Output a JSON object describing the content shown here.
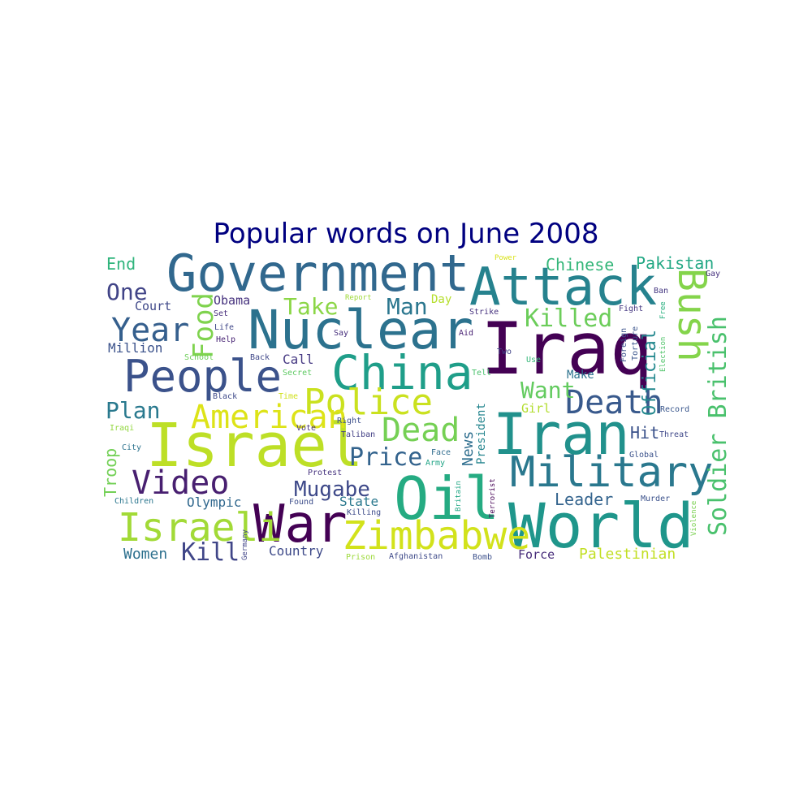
{
  "title": "Popular words on June 2008",
  "words": [
    {
      "text": "Government",
      "color": "#31688e"
    },
    {
      "text": "Attack",
      "color": "#26828e"
    },
    {
      "text": "Nuclear",
      "color": "#2c728e"
    },
    {
      "text": "Iraq",
      "color": "#440154"
    },
    {
      "text": "China",
      "color": "#1f9e89"
    },
    {
      "text": "People",
      "color": "#3b528b"
    },
    {
      "text": "Israel",
      "color": "#bddf26"
    },
    {
      "text": "Iran",
      "color": "#21918c"
    },
    {
      "text": "Oil",
      "color": "#25ab82"
    },
    {
      "text": "World",
      "color": "#1f968b"
    },
    {
      "text": "War",
      "color": "#440154"
    },
    {
      "text": "Military",
      "color": "#2a788e"
    },
    {
      "text": "Police",
      "color": "#cae11f"
    },
    {
      "text": "Zimbabwe",
      "color": "#d2e21b"
    },
    {
      "text": "Israeli",
      "color": "#a2da37"
    },
    {
      "text": "Video",
      "color": "#481f70"
    },
    {
      "text": "American",
      "color": "#dde318"
    },
    {
      "text": "Death",
      "color": "#38598c"
    },
    {
      "text": "Dead",
      "color": "#75d054"
    },
    {
      "text": "Year",
      "color": "#355f8d"
    },
    {
      "text": "Food",
      "color": "#7fd34e"
    },
    {
      "text": "Bush",
      "color": "#84d44b"
    },
    {
      "text": "Soldier",
      "color": "#4ac16d"
    },
    {
      "text": "British",
      "color": "#2d718e"
    },
    {
      "text": "Killed",
      "color": "#6ccd5a"
    },
    {
      "text": "Price",
      "color": "#33638d"
    },
    {
      "text": "Mugabe",
      "color": "#3e4989"
    },
    {
      "text": "Want",
      "color": "#63cb5f"
    },
    {
      "text": "Take",
      "color": "#8bd646"
    },
    {
      "text": "Man",
      "color": "#2a768e"
    },
    {
      "text": "Plan",
      "color": "#29798e"
    },
    {
      "text": "Kill",
      "color": "#404688"
    },
    {
      "text": "One",
      "color": "#414487"
    },
    {
      "text": "Chinese",
      "color": "#34b679"
    },
    {
      "text": "Pakistan",
      "color": "#22a884"
    },
    {
      "text": "Official",
      "color": "#23888e"
    },
    {
      "text": "Leader",
      "color": "#33638d"
    },
    {
      "text": "Palestinian",
      "color": "#c2df23"
    },
    {
      "text": "Troop",
      "color": "#73d056"
    },
    {
      "text": "Olympic",
      "color": "#31688e"
    },
    {
      "text": "News",
      "color": "#2e6e8e"
    },
    {
      "text": "President",
      "color": "#25858e"
    },
    {
      "text": "Hit",
      "color": "#3b528b"
    },
    {
      "text": "State",
      "color": "#2a788e"
    },
    {
      "text": "Women",
      "color": "#2d708e"
    },
    {
      "text": "Country",
      "color": "#3e4a89"
    },
    {
      "text": "End",
      "color": "#2fb47c"
    },
    {
      "text": "Million",
      "color": "#3b528b"
    },
    {
      "text": "Court",
      "color": "#3f4889"
    },
    {
      "text": "Obama",
      "color": "#46327e"
    },
    {
      "text": "Call",
      "color": "#453882"
    },
    {
      "text": "Make",
      "color": "#2c728e"
    },
    {
      "text": "Force",
      "color": "#472c7a"
    },
    {
      "text": "Day",
      "color": "#b5de2b"
    },
    {
      "text": "Power",
      "color": "#d8e219"
    },
    {
      "text": "Report",
      "color": "#a0da39"
    },
    {
      "text": "Strike",
      "color": "#46327e"
    },
    {
      "text": "Fight",
      "color": "#453781"
    },
    {
      "text": "Ban",
      "color": "#453781"
    },
    {
      "text": "Gay",
      "color": "#46307e"
    },
    {
      "text": "Free",
      "color": "#29af7f"
    },
    {
      "text": "Set",
      "color": "#472d7b"
    },
    {
      "text": "Life",
      "color": "#3f4788"
    },
    {
      "text": "Help",
      "color": "#482475"
    },
    {
      "text": "Say",
      "color": "#472f7d"
    },
    {
      "text": "Aid",
      "color": "#482173"
    },
    {
      "text": "Two",
      "color": "#414487"
    },
    {
      "text": "Use",
      "color": "#35b779"
    },
    {
      "text": "Foreign",
      "color": "#3b528b"
    },
    {
      "text": "Torture",
      "color": "#3a548c"
    },
    {
      "text": "Election",
      "color": "#50c46a"
    },
    {
      "text": "School",
      "color": "#6ece58"
    },
    {
      "text": "Back",
      "color": "#3f4788"
    },
    {
      "text": "Secret",
      "color": "#5ec962"
    },
    {
      "text": "Tell",
      "color": "#4ac16d"
    },
    {
      "text": "Black",
      "color": "#3e4989"
    },
    {
      "text": "Time",
      "color": "#d0e11c"
    },
    {
      "text": "Girl",
      "color": "#b2dd2d"
    },
    {
      "text": "Record",
      "color": "#39568c"
    },
    {
      "text": "Iraqi",
      "color": "#93d741"
    },
    {
      "text": "Right",
      "color": "#3c4f8a"
    },
    {
      "text": "Taliban",
      "color": "#423f85"
    },
    {
      "text": "Vote",
      "color": "#46327e"
    },
    {
      "text": "Threat",
      "color": "#3f4889"
    },
    {
      "text": "City",
      "color": "#2c738e"
    },
    {
      "text": "Face",
      "color": "#2f6c8e"
    },
    {
      "text": "Army",
      "color": "#20a486"
    },
    {
      "text": "Global",
      "color": "#3b528b"
    },
    {
      "text": "Protest",
      "color": "#46337f"
    },
    {
      "text": "Britain",
      "color": "#22a785"
    },
    {
      "text": "Terrorist",
      "color": "#440154"
    },
    {
      "text": "Murder",
      "color": "#3b518b"
    },
    {
      "text": "Children",
      "color": "#2a768e"
    },
    {
      "text": "Found",
      "color": "#3d4e8a"
    },
    {
      "text": "Killing",
      "color": "#3e4c8a"
    },
    {
      "text": "Violence",
      "color": "#7ad151"
    },
    {
      "text": "Germany",
      "color": "#404588"
    },
    {
      "text": "Prison",
      "color": "#9dd93b"
    },
    {
      "text": "Afghanistan",
      "color": "#3e4a89"
    },
    {
      "text": "Bomb",
      "color": "#3c508b"
    }
  ]
}
